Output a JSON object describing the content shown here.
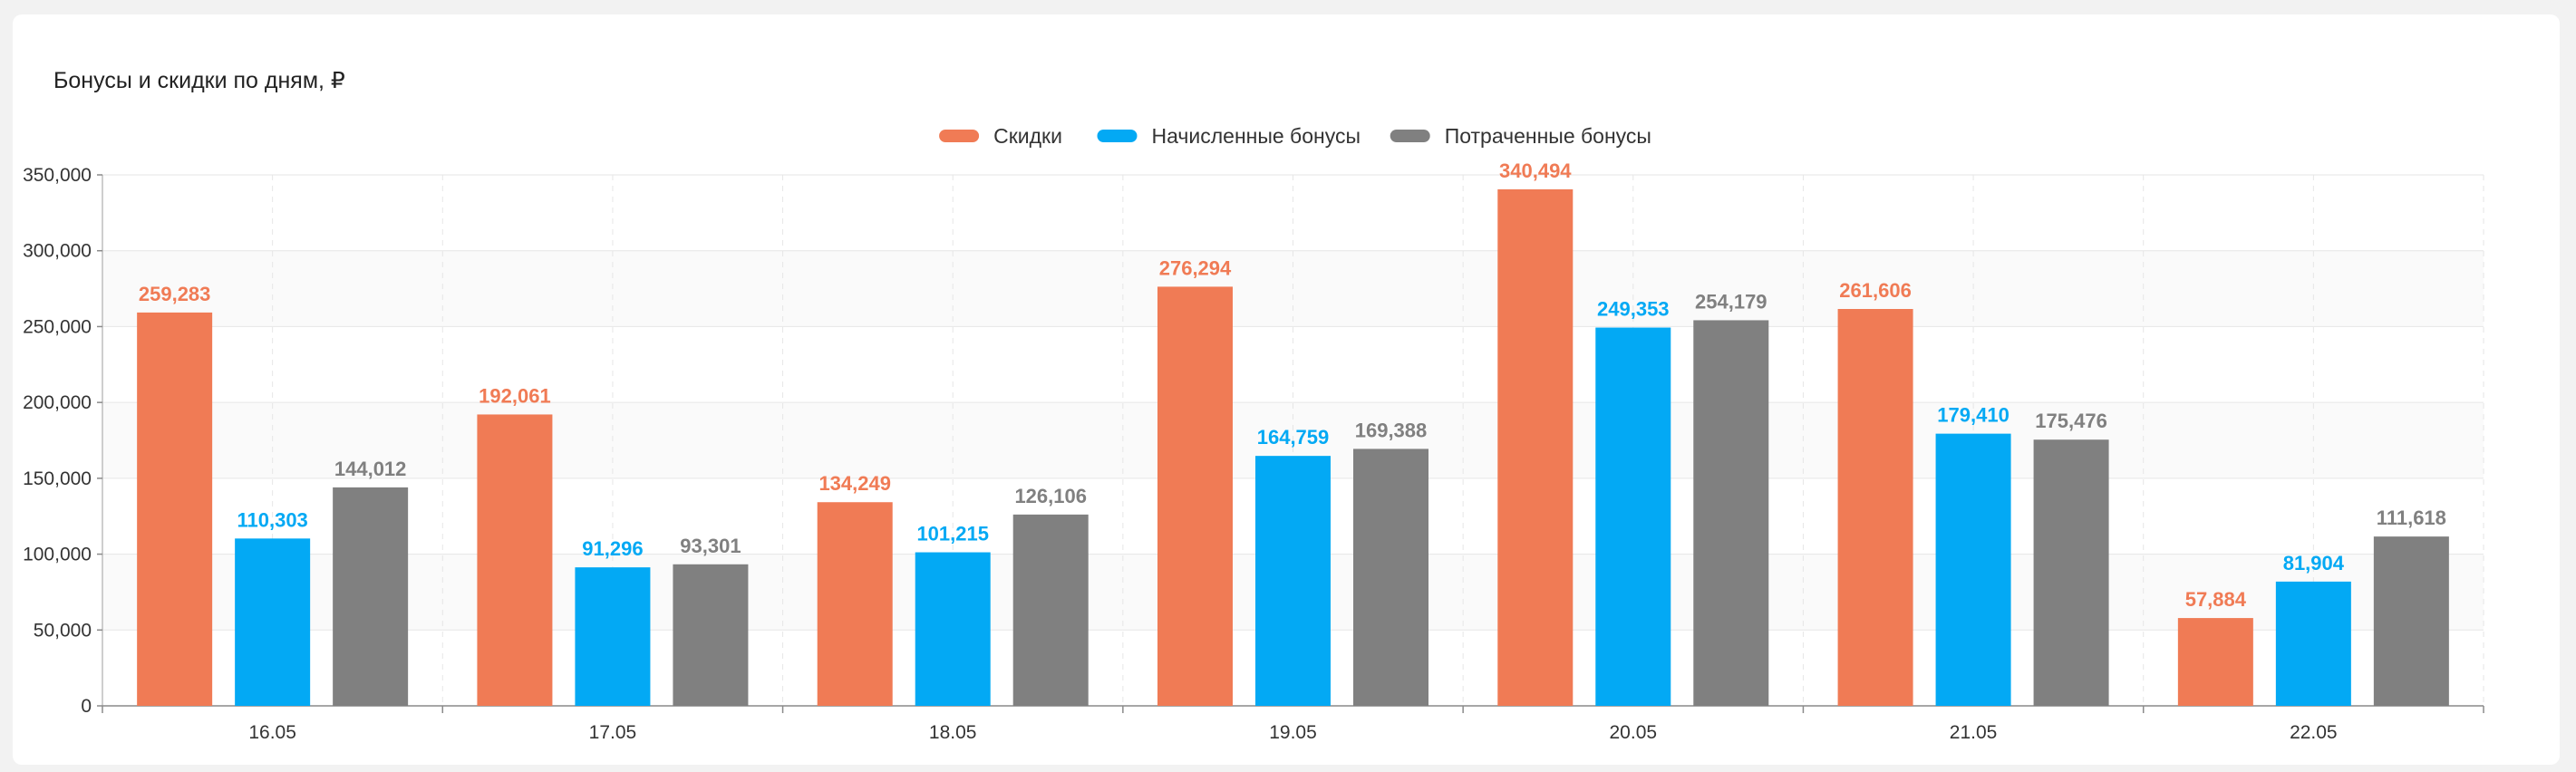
{
  "title": "Бонусы и скидки по дням, ₽",
  "colors": {
    "discounts": "#f07b55",
    "accrued": "#03a9f4",
    "spent": "#808080"
  },
  "chart_data": {
    "type": "bar",
    "title": "Бонусы и скидки по дням, ₽",
    "categories": [
      "16.05",
      "17.05",
      "18.05",
      "19.05",
      "20.05",
      "21.05",
      "22.05"
    ],
    "series": [
      {
        "name": "Скидки",
        "color": "#f07b55",
        "values": [
          259283,
          192061,
          134249,
          276294,
          340494,
          261606,
          57884
        ]
      },
      {
        "name": "Начисленные бонусы",
        "color": "#03a9f4",
        "values": [
          110303,
          91296,
          101215,
          164759,
          249353,
          179410,
          81904
        ]
      },
      {
        "name": "Потраченные бонусы",
        "color": "#808080",
        "values": [
          144012,
          93301,
          126106,
          169388,
          254179,
          175476,
          111618
        ]
      }
    ],
    "ylim": [
      0,
      350000
    ],
    "yticks": [
      0,
      50000,
      100000,
      150000,
      200000,
      250000,
      300000,
      350000
    ],
    "ytick_labels": [
      "0",
      "50,000",
      "100,000",
      "150,000",
      "200,000",
      "250,000",
      "300,000",
      "350,000"
    ],
    "data_labels": true,
    "legend": "top-center",
    "grid": true
  }
}
